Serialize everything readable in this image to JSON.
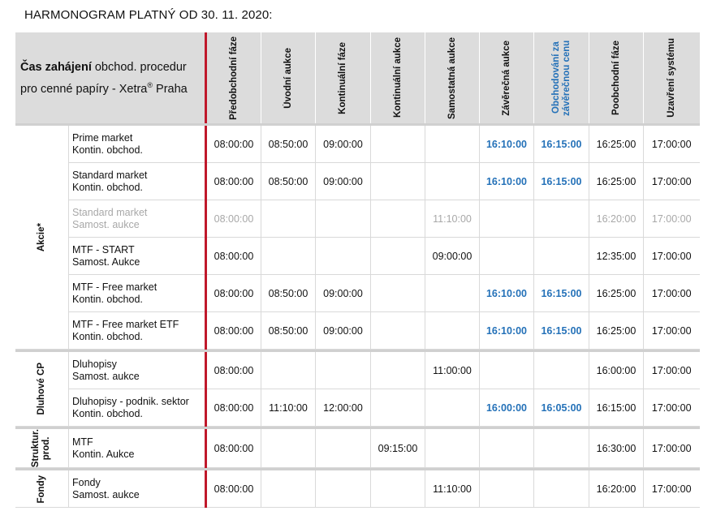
{
  "title": "HARMONOGRAM PLATNÝ OD  30. 11. 2020:",
  "intro": {
    "bold": "Čas zahájení",
    "rest1": " obchod. procedur",
    "line2": "pro cenné papíry - Xetra",
    "reg": "®",
    "rest2": " Praha"
  },
  "columns": [
    {
      "label": "Předobchodní fáze",
      "blue": false
    },
    {
      "label": "Úvodní aukce",
      "blue": false
    },
    {
      "label": "Kontinuální fáze",
      "blue": false
    },
    {
      "label": "Kontinuální aukce",
      "blue": false
    },
    {
      "label": "Samostatná aukce",
      "blue": false
    },
    {
      "label": "Závěrečná aukce",
      "blue": false
    },
    {
      "label": "Obchodování za závěrečnou cenu",
      "blue": true
    },
    {
      "label": "Poobchodní fáze",
      "blue": false
    },
    {
      "label": "Uzavření systému",
      "blue": false
    }
  ],
  "colors": {
    "accent_red": "#c0182b",
    "blue": "#2471b8",
    "header_bg": "#dcdcdc",
    "muted": "#a8a8a8"
  },
  "groups": [
    {
      "name": "Akcie*",
      "rows": [
        {
          "l1": "Prime market",
          "l2": "Kontin. obchod.",
          "gray": false,
          "times": [
            "08:00:00",
            "08:50:00",
            "09:00:00",
            "",
            "",
            "16:10:00",
            "16:15:00",
            "16:25:00",
            "17:00:00"
          ]
        },
        {
          "l1": "Standard market",
          "l2": "Kontin. obchod.",
          "gray": false,
          "times": [
            "08:00:00",
            "08:50:00",
            "09:00:00",
            "",
            "",
            "16:10:00",
            "16:15:00",
            "16:25:00",
            "17:00:00"
          ]
        },
        {
          "l1": "Standard market",
          "l2": "Samost. aukce",
          "gray": true,
          "times": [
            "08:00:00",
            "",
            "",
            "",
            "11:10:00",
            "",
            "",
            "16:20:00",
            "17:00:00"
          ]
        },
        {
          "l1": "MTF - START",
          "l2": "Samost. Aukce",
          "gray": false,
          "times": [
            "08:00:00",
            "",
            "",
            "",
            "09:00:00",
            "",
            "",
            "12:35:00",
            "17:00:00"
          ]
        },
        {
          "l1": "MTF - Free market",
          "l2": "Kontin. obchod.",
          "gray": false,
          "times": [
            "08:00:00",
            "08:50:00",
            "09:00:00",
            "",
            "",
            "16:10:00",
            "16:15:00",
            "16:25:00",
            "17:00:00"
          ]
        },
        {
          "l1": "MTF - Free market ETF",
          "l2": "Kontin. obchod.",
          "gray": false,
          "times": [
            "08:00:00",
            "08:50:00",
            "09:00:00",
            "",
            "",
            "16:10:00",
            "16:15:00",
            "16:25:00",
            "17:00:00"
          ]
        }
      ]
    },
    {
      "name": "Dluhové CP",
      "rows": [
        {
          "l1": "Dluhopisy",
          "l2": "Samost. aukce",
          "gray": false,
          "times": [
            "08:00:00",
            "",
            "",
            "",
            "11:00:00",
            "",
            "",
            "16:00:00",
            "17:00:00"
          ]
        },
        {
          "l1": "Dluhopisy -  podnik. sektor",
          "l2": "Kontin. obchod.",
          "gray": false,
          "times": [
            "08:00:00",
            "11:10:00",
            "12:00:00",
            "",
            "",
            "16:00:00",
            "16:05:00",
            "16:15:00",
            "17:00:00"
          ]
        }
      ]
    },
    {
      "name": "Struktur. prod.",
      "rows": [
        {
          "l1": "MTF",
          "l2": "Kontin. Aukce",
          "gray": false,
          "times": [
            "08:00:00",
            "",
            "",
            "09:15:00",
            "",
            "",
            "",
            "16:30:00",
            "17:00:00"
          ]
        }
      ]
    },
    {
      "name": "Fondy",
      "rows": [
        {
          "l1": "Fondy",
          "l2": "Samost. aukce",
          "gray": false,
          "times": [
            "08:00:00",
            "",
            "",
            "",
            "11:10:00",
            "",
            "",
            "16:20:00",
            "17:00:00"
          ]
        }
      ]
    }
  ]
}
